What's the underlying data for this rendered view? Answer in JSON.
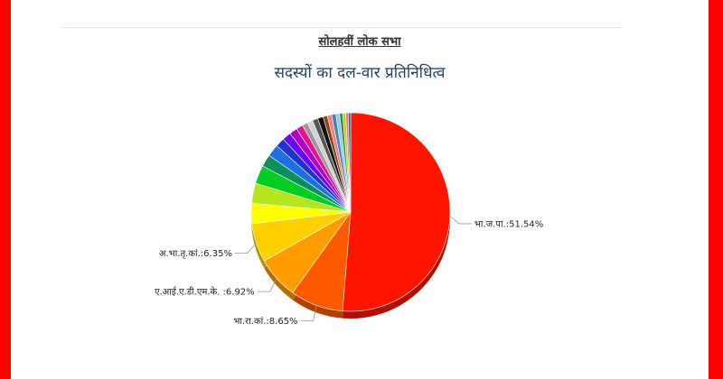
{
  "page": {
    "heading": "सोलहवीं लोक सभा",
    "title": "सदस्यों का दल-वार प्रतिनिधित्व"
  },
  "chart_data": {
    "type": "pie",
    "title": "सदस्यों का दल-वार प्रतिनिधित्व",
    "slices": [
      {
        "name": "भा.ज.पा.",
        "label": "भा.ज.पा.:51.54%",
        "value": 51.54,
        "color": "#ff1400"
      },
      {
        "name": "भा.रा.कां.",
        "label": "भा.रा.कां.:8.65%",
        "value": 8.65,
        "color": "#ff5a00"
      },
      {
        "name": "ए.आई.ए.डी.एम.के.",
        "label": "ए.आई.ए.डी.एम.के. :6.92%",
        "value": 6.92,
        "color": "#ff9c00"
      },
      {
        "name": "अ.भा.तृ.कां.",
        "label": "अ.भा.तृ.कां.:6.35%",
        "value": 6.35,
        "color": "#ffd000"
      },
      {
        "value": 3.3,
        "color": "#ffff00"
      },
      {
        "value": 3.3,
        "color": "#b5e61d"
      },
      {
        "value": 3.0,
        "color": "#00cc22"
      },
      {
        "value": 2.0,
        "color": "#0a8f5a"
      },
      {
        "value": 2.0,
        "color": "#1e6fe0"
      },
      {
        "value": 1.5,
        "color": "#2233cc"
      },
      {
        "value": 1.4,
        "color": "#6a00ff"
      },
      {
        "value": 1.3,
        "color": "#b000c8"
      },
      {
        "value": 1.1,
        "color": "#e0148c"
      },
      {
        "value": 0.9,
        "color": "#999999"
      },
      {
        "value": 0.9,
        "color": "#d0d0d0"
      },
      {
        "value": 0.9,
        "color": "#555555"
      },
      {
        "value": 0.9,
        "color": "#111111"
      },
      {
        "value": 0.7,
        "color": "#8b4513"
      },
      {
        "value": 0.7,
        "color": "#f08080"
      },
      {
        "value": 0.7,
        "color": "#4682b4"
      },
      {
        "value": 0.6,
        "color": "#87ceeb"
      },
      {
        "value": 0.5,
        "color": "#2e8b57"
      },
      {
        "value": 0.5,
        "color": "#cccc00"
      },
      {
        "value": 0.4,
        "color": "#ff69b4"
      },
      {
        "value": 0.4,
        "color": "#008080"
      }
    ]
  }
}
